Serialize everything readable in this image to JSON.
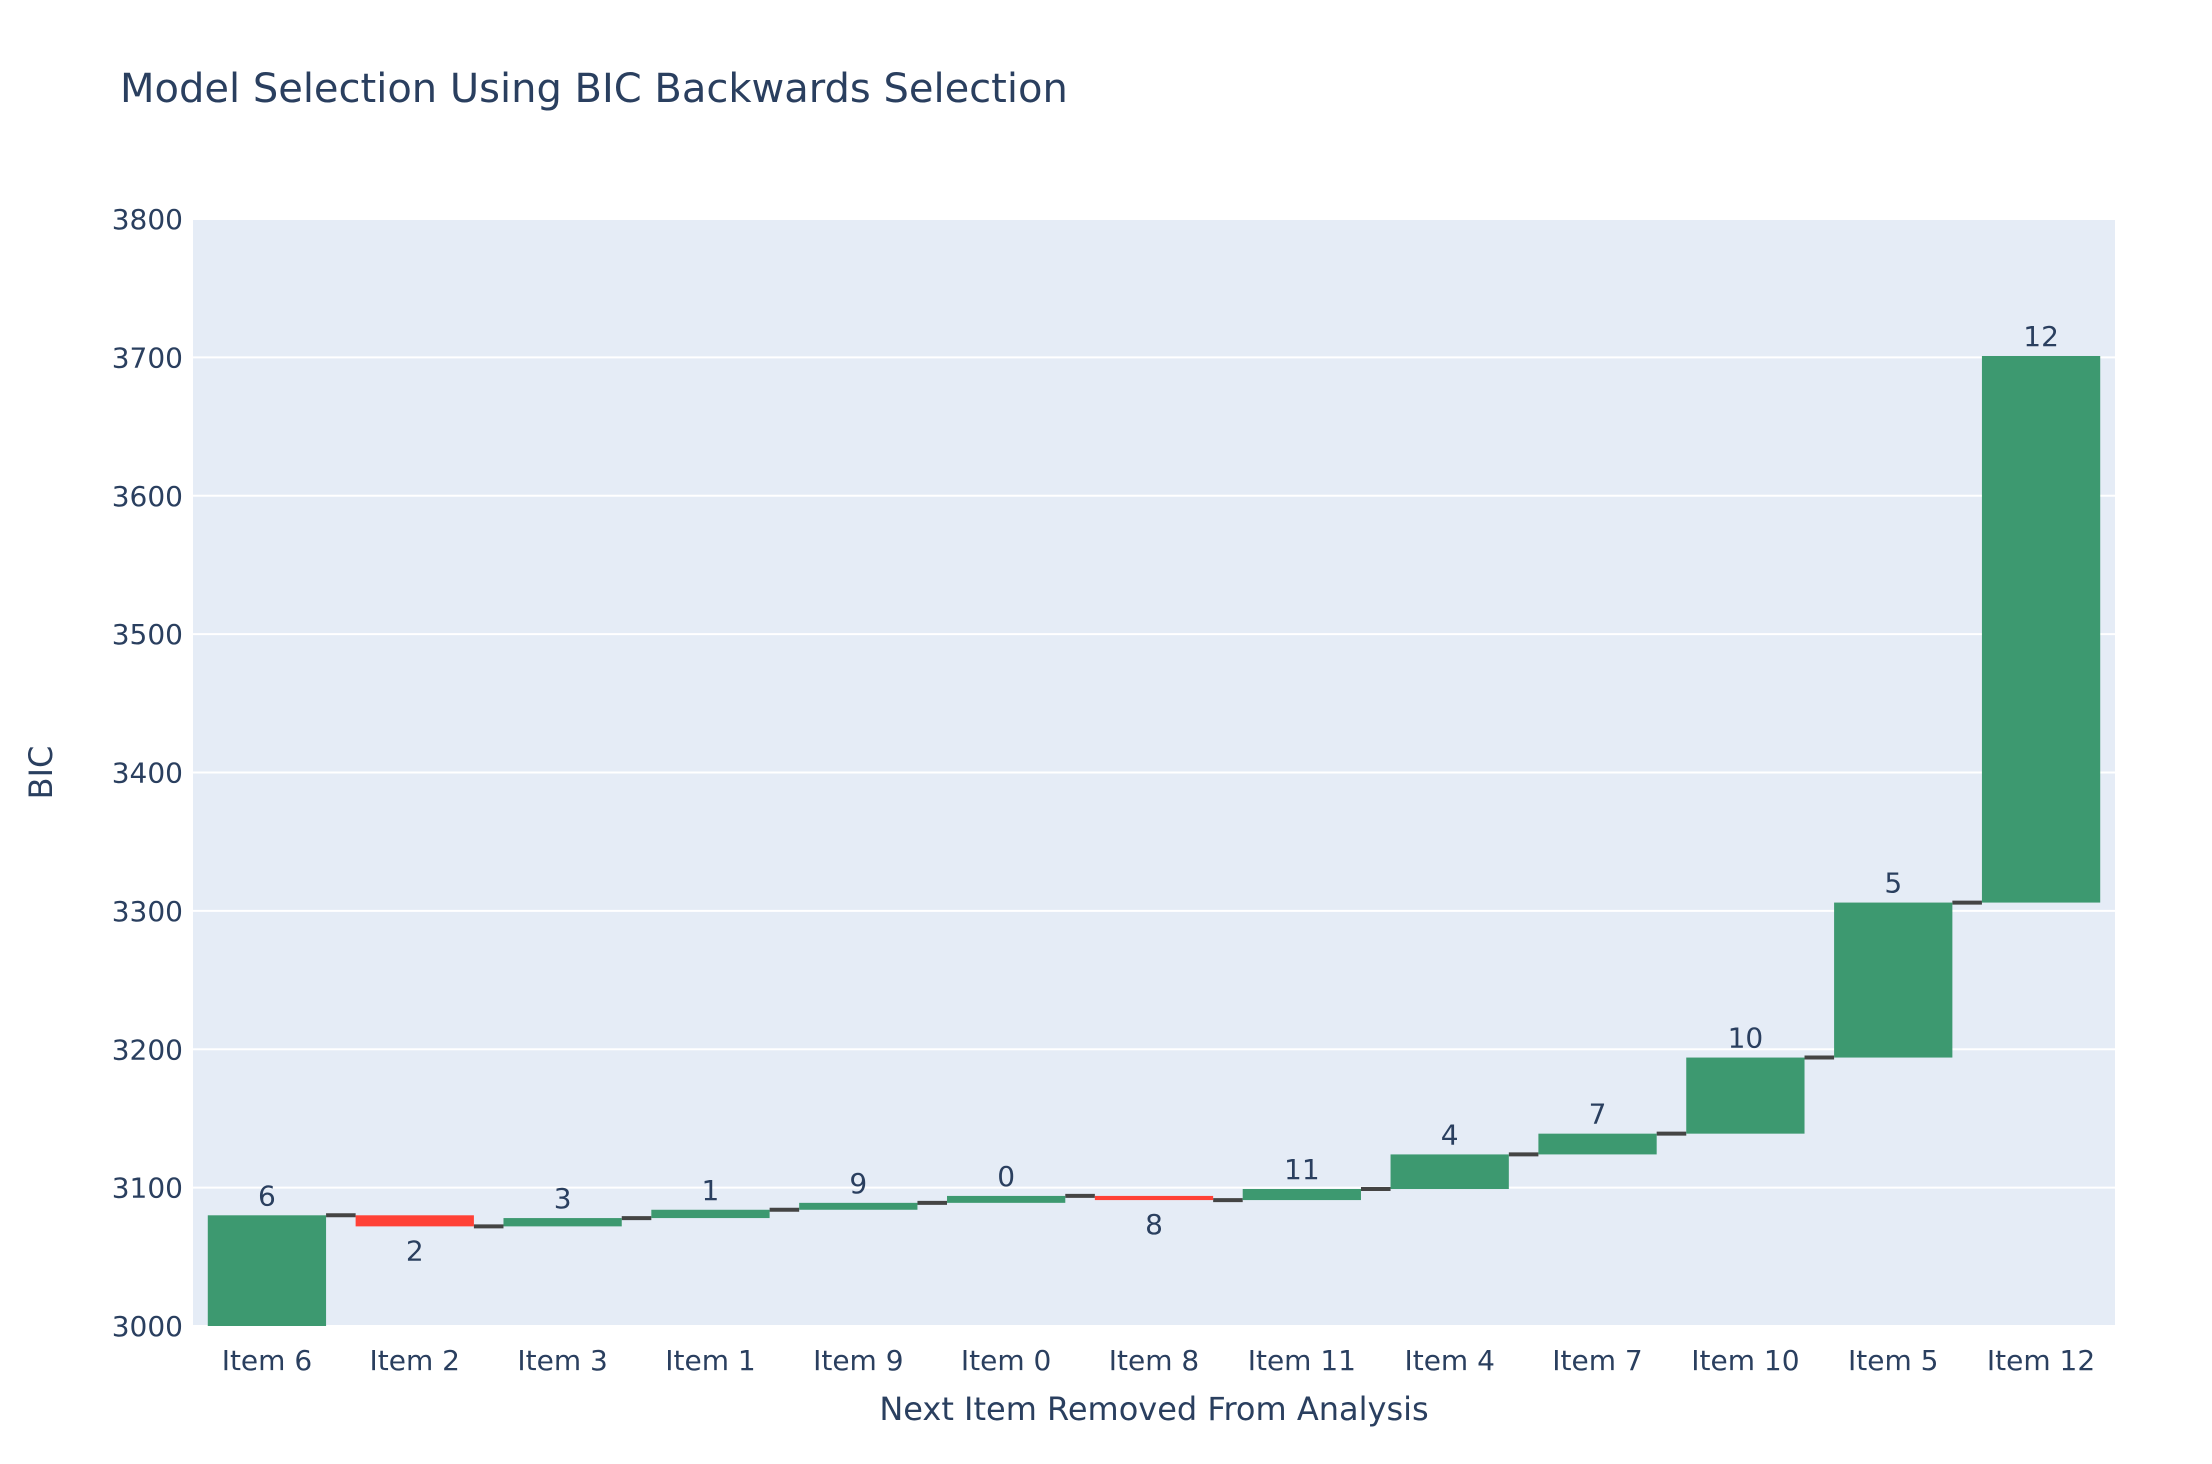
{
  "chart_data": {
    "type": "bar",
    "subtype": "waterfall",
    "title": "Model Selection Using BIC Backwards Selection",
    "xlabel": "Next Item Removed From Analysis",
    "ylabel": "BIC",
    "ylim": [
      3000,
      3800
    ],
    "yticks": [
      3000,
      3100,
      3200,
      3300,
      3400,
      3500,
      3600,
      3700,
      3800
    ],
    "grid": true,
    "legend": "none",
    "categories": [
      "Item 6",
      "Item 2",
      "Item 3",
      "Item 1",
      "Item 9",
      "Item 0",
      "Item 8",
      "Item 11",
      "Item 4",
      "Item 7",
      "Item 10",
      "Item 5",
      "Item 12"
    ],
    "labels": [
      "6",
      "2",
      "3",
      "1",
      "9",
      "0",
      "8",
      "11",
      "4",
      "7",
      "10",
      "5",
      "12"
    ],
    "base": 0,
    "deltas": [
      3080,
      -8,
      6,
      6,
      5,
      5,
      -3,
      8,
      25,
      15,
      55,
      112,
      395
    ],
    "colors": {
      "increasing": "#3d9970",
      "decreasing": "#ff4136",
      "connector": "#444444",
      "plot_bg": "#e5ecf6",
      "grid": "#ffffff"
    }
  }
}
